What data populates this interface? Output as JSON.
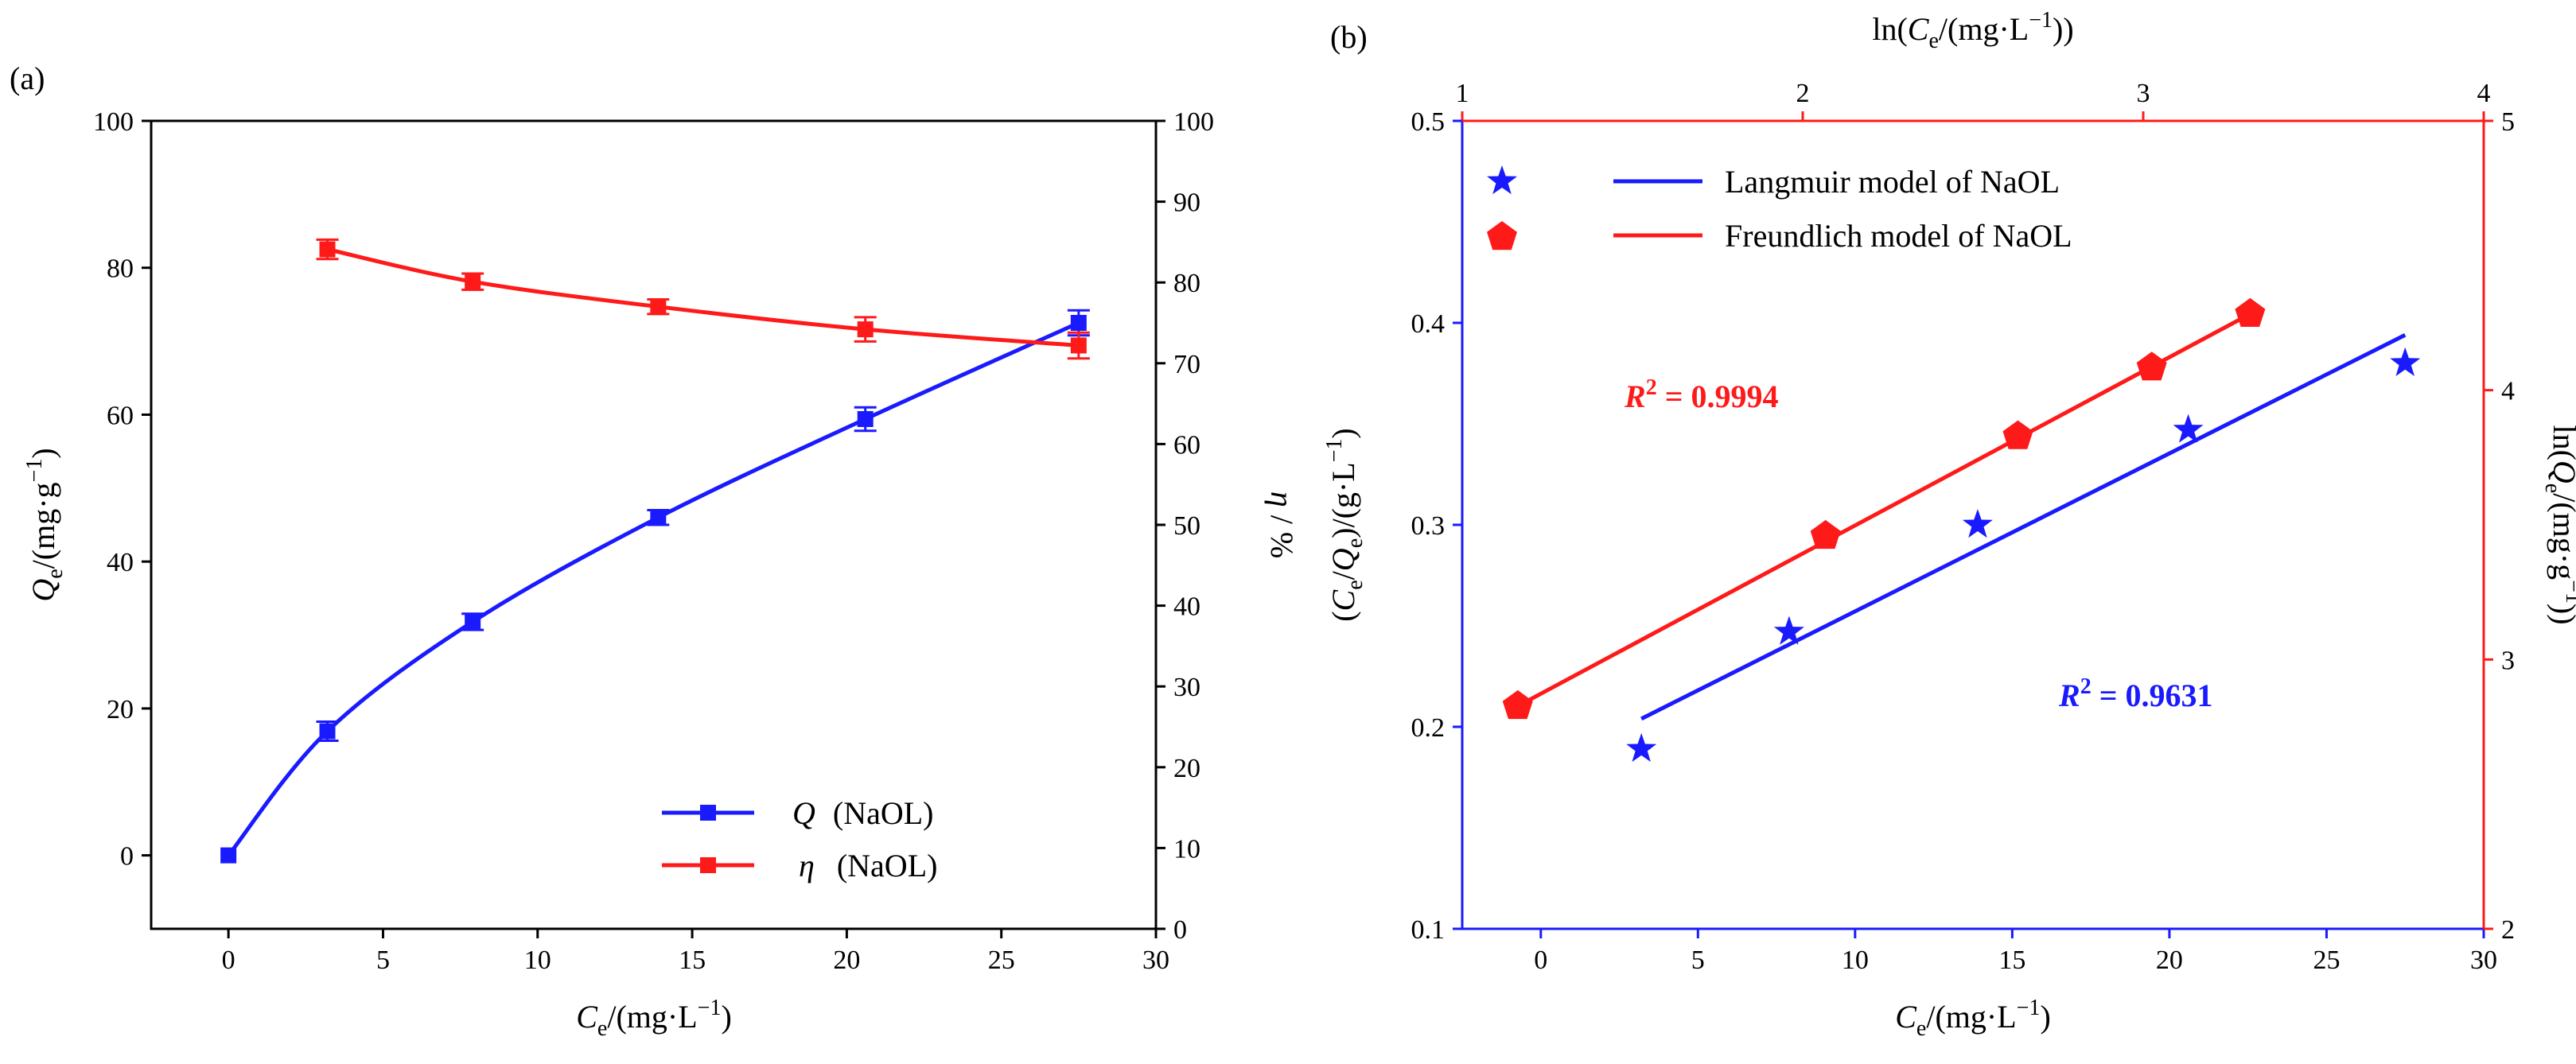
{
  "colors": {
    "blue": "#1a1aff",
    "red": "#ff1a1a",
    "black": "#000000"
  },
  "chart_data": [
    {
      "panel": "(a)",
      "type": "line",
      "title": "",
      "x": {
        "label_main": "C",
        "label_sub": "e",
        "label_rest": "/(mg·L",
        "label_sup": "−1",
        "label_end": ")",
        "lim": [
          -2.5,
          30
        ],
        "ticks": [
          0,
          5,
          10,
          15,
          20,
          25,
          30
        ]
      },
      "y_left": {
        "label_main": "Q",
        "label_sub": "e",
        "label_rest": "/(mg·g",
        "label_sup": "−1",
        "label_end": ")",
        "lim": [
          -10,
          100
        ],
        "ticks": [
          0,
          20,
          40,
          60,
          80,
          100
        ]
      },
      "y_right": {
        "label_main": "η",
        "label_rest": " / %",
        "lim": [
          0,
          100
        ],
        "ticks": [
          0,
          10,
          20,
          30,
          40,
          50,
          60,
          70,
          80,
          90,
          100
        ]
      },
      "series": [
        {
          "name": "Q",
          "legend_suffix": "(NaOL)",
          "axis": "left",
          "color": "#1a1aff",
          "marker": "square",
          "x": [
            0,
            3.2,
            7.9,
            13.9,
            20.6,
            27.5
          ],
          "y": [
            0,
            16.9,
            31.8,
            46.0,
            59.4,
            72.5
          ],
          "err": [
            0,
            1.3,
            1.1,
            1.0,
            1.6,
            1.7
          ]
        },
        {
          "name": "η",
          "legend_suffix": "(NaOL)",
          "axis": "right",
          "color": "#ff1a1a",
          "marker": "square",
          "x": [
            3.2,
            7.9,
            13.9,
            20.6,
            27.5
          ],
          "y": [
            84.1,
            80.1,
            77.0,
            74.2,
            72.2
          ],
          "err": [
            1.2,
            1.0,
            0.9,
            1.5,
            1.6
          ]
        }
      ],
      "legend_position": "bottom-right"
    },
    {
      "panel": "(b)",
      "type": "scatter",
      "title": "",
      "x_bottom": {
        "label_main": "C",
        "label_sub": "e",
        "label_rest": "/(mg·L",
        "label_sup": "−1",
        "label_end": ")",
        "lim": [
          -2.5,
          30
        ],
        "ticks": [
          0,
          5,
          10,
          15,
          20,
          25,
          30
        ]
      },
      "x_top": {
        "label_prefix": "ln(",
        "label_main": "C",
        "label_sub": "e",
        "label_rest": "/(mg·L",
        "label_sup": "−1",
        "label_end": "))",
        "lim": [
          1,
          4
        ],
        "ticks": [
          1,
          2,
          3,
          4
        ]
      },
      "y_left": {
        "label_prefix": "(",
        "label_main": "C",
        "label_sub": "e",
        "label_mid": "/",
        "label_main2": "Q",
        "label_sub2": "e",
        "label_rest": ")/(g·L",
        "label_sup": "−1",
        "label_end": ")",
        "lim": [
          0.1,
          0.5
        ],
        "ticks": [
          "0.1",
          "0.2",
          "0.3",
          "0.4",
          "0.5"
        ]
      },
      "y_right": {
        "label_prefix": "ln(",
        "label_main": "Q",
        "label_sub": "e",
        "label_rest": "/(mg·g",
        "label_sup": "−1",
        "label_end": "))",
        "lim": [
          2,
          5
        ],
        "ticks": [
          2,
          3,
          4,
          5
        ]
      },
      "series": [
        {
          "name": "Langmuir model of NaOL",
          "axis": "bottom-left",
          "color": "#1a1aff",
          "marker": "star",
          "x": [
            3.2,
            7.9,
            13.9,
            20.6,
            27.5
          ],
          "y": [
            0.189,
            0.247,
            0.3,
            0.347,
            0.38
          ],
          "fit": {
            "x": [
              3.2,
              27.5
            ],
            "y": [
              0.204,
              0.394
            ]
          },
          "r2_label": "R",
          "r2_sup": "2",
          "r2_value": " = 0.9631"
        },
        {
          "name": "Freundlich model of NaOL",
          "axis": "top-right",
          "color": "#ff1a1a",
          "marker": "pentagon",
          "x": [
            1.163,
            2.067,
            2.632,
            3.025,
            3.314
          ],
          "y": [
            2.827,
            3.459,
            3.829,
            4.084,
            4.283
          ],
          "fit": {
            "x": [
              1.163,
              3.314
            ],
            "y": [
              2.827,
              4.283
            ]
          },
          "r2_label": "R",
          "r2_sup": "2",
          "r2_value": " = 0.9994"
        }
      ],
      "legend_position": "top-left"
    }
  ]
}
